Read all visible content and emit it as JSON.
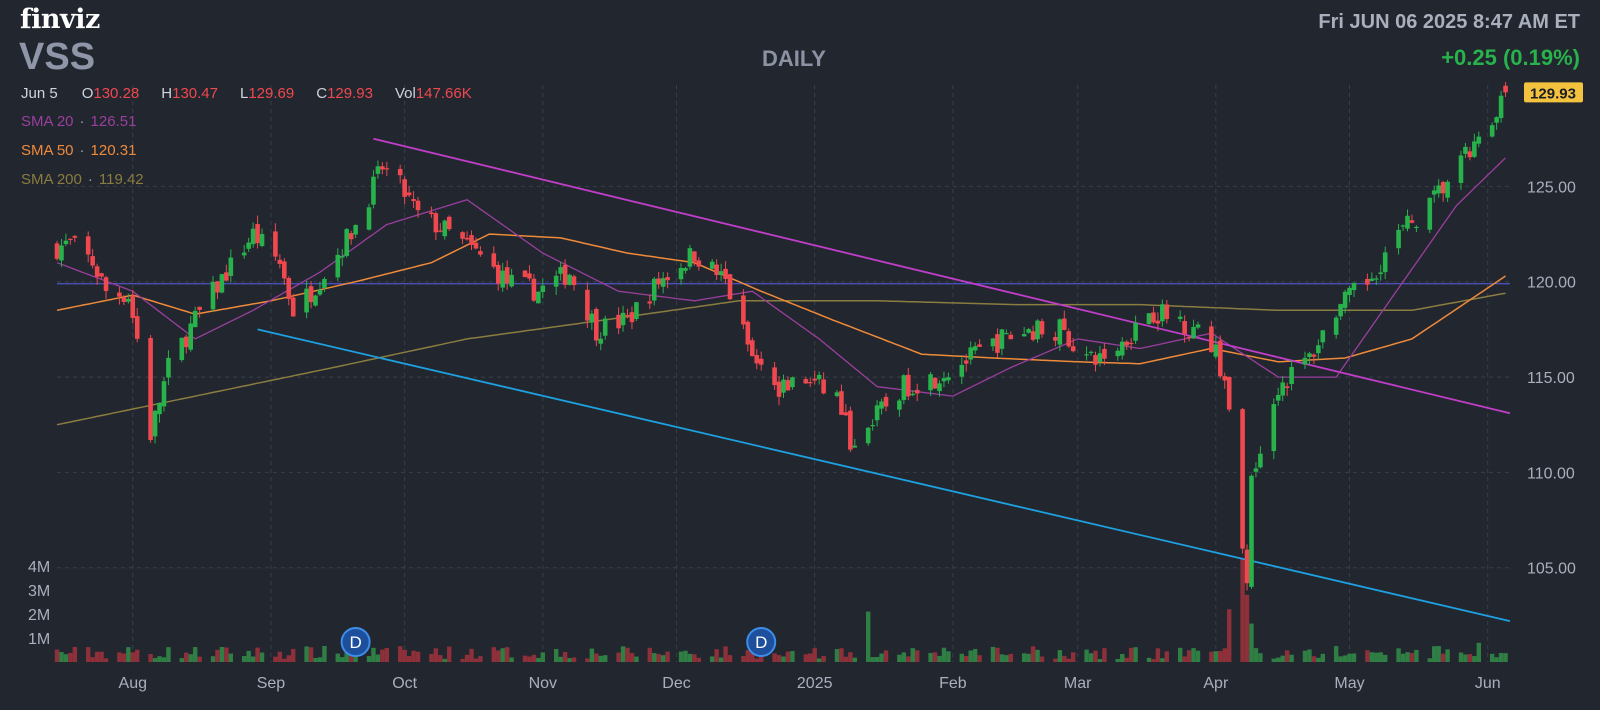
{
  "header": {
    "logo": "finviz",
    "ticker": "VSS",
    "timeframe": "DAILY",
    "datetime": "Fri JUN 06 2025 8:47 AM ET",
    "change": "+0.25 (0.19%)"
  },
  "ohlc": {
    "date": "Jun 5",
    "o_label": "O",
    "o": "130.28",
    "h_label": "H",
    "h": "130.47",
    "l_label": "L",
    "l": "129.69",
    "c_label": "C",
    "c": "129.93",
    "vol_label": "Vol",
    "vol": "147.66K"
  },
  "indicators": [
    {
      "name": "SMA 20",
      "value": "126.51",
      "color": "#9a3f9e"
    },
    {
      "name": "SMA 50",
      "value": "120.31",
      "color": "#ef8a3a"
    },
    {
      "name": "SMA 200",
      "value": "119.42",
      "color": "#8a7d40"
    }
  ],
  "colors": {
    "background": "#22262f",
    "up": "#27b24b",
    "down": "#f0484f",
    "grid": "#3a3f4a",
    "upper_trendline": "#c13ec8",
    "lower_trendline": "#1da1e0",
    "horizontal_line": "#4b4fb8",
    "last_price_badge": "#f3c340"
  },
  "chart_data": {
    "type": "candlestick",
    "title": "",
    "ylim": [
      101,
      131
    ],
    "y_ticks": [
      "125.00",
      "120.00",
      "115.00",
      "110.00",
      "105.00"
    ],
    "x_ticks": [
      "Aug",
      "Sep",
      "Oct",
      "Nov",
      "Dec",
      "2025",
      "Feb",
      "Mar",
      "Apr",
      "May",
      "Jun"
    ],
    "volume_ticks": [
      "4M",
      "3M",
      "2M",
      "1M"
    ],
    "last_price": "129.93",
    "dividend_marker": "D",
    "dividends": [
      "2024-09-20",
      "2024-12-20"
    ],
    "price_anchors": [
      [
        "2024-07-15",
        121.8
      ],
      [
        "2024-07-18",
        122.0
      ],
      [
        "2024-07-23",
        121.0
      ],
      [
        "2024-07-26",
        119.5
      ],
      [
        "2024-07-31",
        119.3
      ],
      [
        "2024-08-02",
        117.0
      ],
      [
        "2024-08-05",
        112.0
      ],
      [
        "2024-08-09",
        115.5
      ],
      [
        "2024-08-15",
        118.0
      ],
      [
        "2024-08-22",
        120.5
      ],
      [
        "2024-08-28",
        122.5
      ],
      [
        "2024-09-03",
        121.0
      ],
      [
        "2024-09-06",
        118.5
      ],
      [
        "2024-09-10",
        119.5
      ],
      [
        "2024-09-16",
        121.5
      ],
      [
        "2024-09-20",
        123.0
      ],
      [
        "2024-09-26",
        126.0
      ],
      [
        "2024-09-30",
        125.0
      ],
      [
        "2024-10-04",
        123.5
      ],
      [
        "2024-10-10",
        122.7
      ],
      [
        "2024-10-17",
        121.5
      ],
      [
        "2024-10-24",
        120.0
      ],
      [
        "2024-10-31",
        119.5
      ],
      [
        "2024-11-07",
        120.5
      ],
      [
        "2024-11-13",
        117.5
      ],
      [
        "2024-11-20",
        118.0
      ],
      [
        "2024-11-27",
        120.0
      ],
      [
        "2024-12-05",
        121.5
      ],
      [
        "2024-12-12",
        120.0
      ],
      [
        "2024-12-18",
        116.0
      ],
      [
        "2024-12-23",
        114.5
      ],
      [
        "2024-12-31",
        114.8
      ],
      [
        "2025-01-06",
        114.0
      ],
      [
        "2025-01-10",
        111.0
      ],
      [
        "2025-01-15",
        113.0
      ],
      [
        "2025-01-21",
        114.5
      ],
      [
        "2025-01-28",
        115.0
      ],
      [
        "2025-02-05",
        116.0
      ],
      [
        "2025-02-12",
        117.0
      ],
      [
        "2025-02-19",
        117.5
      ],
      [
        "2025-02-25",
        117.5
      ],
      [
        "2025-03-04",
        115.8
      ],
      [
        "2025-03-10",
        116.5
      ],
      [
        "2025-03-17",
        118.5
      ],
      [
        "2025-03-24",
        118.0
      ],
      [
        "2025-03-31",
        116.8
      ],
      [
        "2025-04-03",
        115.0
      ],
      [
        "2025-04-07",
        106.0
      ],
      [
        "2025-04-08",
        104.5
      ],
      [
        "2025-04-09",
        110.0
      ],
      [
        "2025-04-11",
        111.5
      ],
      [
        "2025-04-15",
        114.5
      ],
      [
        "2025-04-22",
        116.0
      ],
      [
        "2025-04-28",
        118.5
      ],
      [
        "2025-05-05",
        120.0
      ],
      [
        "2025-05-12",
        122.5
      ],
      [
        "2025-05-19",
        124.0
      ],
      [
        "2025-05-27",
        126.5
      ],
      [
        "2025-06-02",
        128.0
      ],
      [
        "2025-06-05",
        129.9
      ]
    ],
    "sma20": [
      [
        "2024-07-15",
        121.0
      ],
      [
        "2024-08-01",
        119.5
      ],
      [
        "2024-08-15",
        117.0
      ],
      [
        "2024-08-28",
        118.5
      ],
      [
        "2024-09-12",
        120.5
      ],
      [
        "2024-09-27",
        123.0
      ],
      [
        "2024-10-15",
        124.3
      ],
      [
        "2024-11-01",
        121.5
      ],
      [
        "2024-11-18",
        119.5
      ],
      [
        "2024-12-05",
        119.0
      ],
      [
        "2024-12-18",
        119.5
      ],
      [
        "2025-01-02",
        117.0
      ],
      [
        "2025-01-15",
        114.5
      ],
      [
        "2025-02-01",
        114.0
      ],
      [
        "2025-02-14",
        115.5
      ],
      [
        "2025-03-01",
        117.0
      ],
      [
        "2025-03-15",
        116.5
      ],
      [
        "2025-03-31",
        117.3
      ],
      [
        "2025-04-15",
        115.0
      ],
      [
        "2025-04-28",
        115.0
      ],
      [
        "2025-05-10",
        119.0
      ],
      [
        "2025-05-25",
        124.0
      ],
      [
        "2025-06-05",
        126.5
      ]
    ],
    "sma50": [
      [
        "2024-07-15",
        118.5
      ],
      [
        "2024-08-01",
        119.3
      ],
      [
        "2024-08-15",
        118.3
      ],
      [
        "2024-09-01",
        119.0
      ],
      [
        "2024-09-20",
        120.0
      ],
      [
        "2024-10-07",
        121.0
      ],
      [
        "2024-10-20",
        122.5
      ],
      [
        "2024-11-05",
        122.3
      ],
      [
        "2024-11-20",
        121.5
      ],
      [
        "2024-12-05",
        121.0
      ],
      [
        "2024-12-20",
        119.5
      ],
      [
        "2025-01-05",
        118.0
      ],
      [
        "2025-01-25",
        116.2
      ],
      [
        "2025-02-10",
        116.0
      ],
      [
        "2025-03-01",
        115.8
      ],
      [
        "2025-03-15",
        115.7
      ],
      [
        "2025-03-31",
        116.5
      ],
      [
        "2025-04-15",
        115.8
      ],
      [
        "2025-04-30",
        116.0
      ],
      [
        "2025-05-15",
        117.0
      ],
      [
        "2025-06-05",
        120.3
      ]
    ],
    "sma200": [
      [
        "2024-07-15",
        112.5
      ],
      [
        "2024-08-15",
        114.0
      ],
      [
        "2024-09-15",
        115.5
      ],
      [
        "2024-10-15",
        117.0
      ],
      [
        "2024-11-15",
        118.0
      ],
      [
        "2024-12-15",
        119.0
      ],
      [
        "2025-01-15",
        119.0
      ],
      [
        "2025-02-15",
        118.8
      ],
      [
        "2025-03-15",
        118.8
      ],
      [
        "2025-04-15",
        118.5
      ],
      [
        "2025-05-15",
        118.5
      ],
      [
        "2025-06-05",
        119.4
      ]
    ],
    "horizontal_line": 119.9,
    "upper_trendline": [
      [
        "2024-09-24",
        127.5
      ],
      [
        "2025-06-06",
        113.1
      ]
    ],
    "lower_trendline": [
      [
        "2024-08-29",
        117.5
      ],
      [
        "2025-06-06",
        102.2
      ]
    ]
  }
}
